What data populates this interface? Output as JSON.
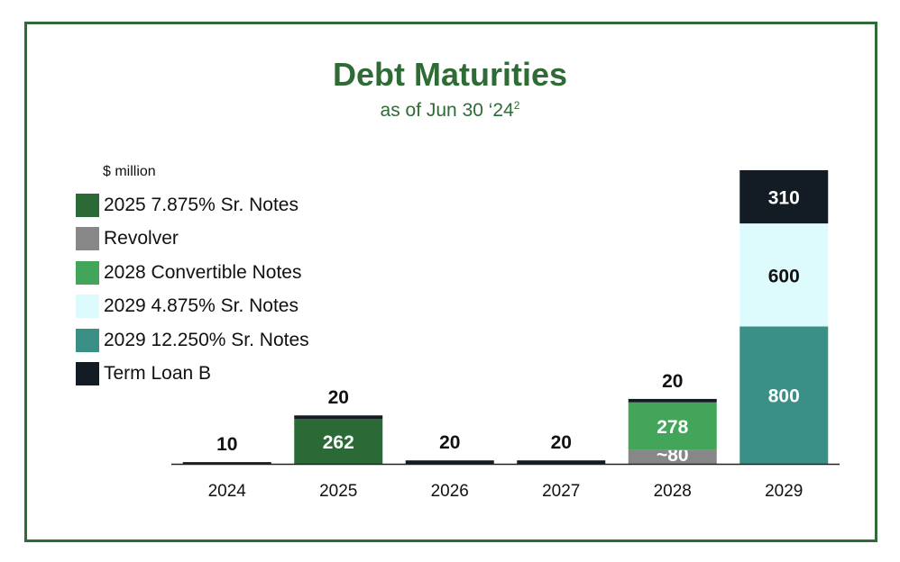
{
  "title": "Debt Maturities",
  "subtitle_text": "as of Jun 30 ‘24",
  "subtitle_sup": "2",
  "unit_label": "$ million",
  "colors": {
    "frame": "#2e6b35",
    "title": "#2e6b35",
    "notes_2025": "#2b6a36",
    "revolver": "#878787",
    "convertible_2028": "#43a55a",
    "notes_2029_4875": "#ddfafd",
    "notes_2029_12250": "#3a9086",
    "term_loan_b": "#131c24",
    "axis": "#222222"
  },
  "legend": [
    {
      "label": "2025 7.875% Sr. Notes",
      "color": "#2b6a36"
    },
    {
      "label": "Revolver",
      "color": "#878787"
    },
    {
      "label": "2028 Convertible Notes",
      "color": "#43a55a"
    },
    {
      "label": "2029 4.875% Sr. Notes",
      "color": "#ddfafd"
    },
    {
      "label": "2029 12.250% Sr. Notes",
      "color": "#3a9086"
    },
    {
      "label": "Term Loan B",
      "color": "#131c24"
    }
  ],
  "chart_data": {
    "type": "bar",
    "stacked": true,
    "title": "Debt Maturities",
    "subtitle": "as of Jun 30 ‘24²",
    "ylabel": "$ million",
    "categories": [
      "2024",
      "2025",
      "2026",
      "2027",
      "2028",
      "2029"
    ],
    "series": [
      {
        "name": "2029 12.250% Sr. Notes",
        "color": "#3a9086",
        "values": [
          0,
          0,
          0,
          0,
          0,
          800
        ],
        "labels": [
          "",
          "",
          "",
          "",
          "",
          "800"
        ],
        "label_color": "#ffffff"
      },
      {
        "name": "2025 7.875% Sr. Notes",
        "color": "#2b6a36",
        "values": [
          0,
          262,
          0,
          0,
          0,
          0
        ],
        "labels": [
          "",
          "262",
          "",
          "",
          "",
          ""
        ],
        "label_color": "#ffffff"
      },
      {
        "name": "Revolver",
        "color": "#878787",
        "values": [
          0,
          0,
          0,
          0,
          80,
          0
        ],
        "labels": [
          "",
          "",
          "",
          "",
          "~80",
          ""
        ],
        "label_color": "#ffffff"
      },
      {
        "name": "2028 Convertible Notes",
        "color": "#43a55a",
        "values": [
          0,
          0,
          0,
          0,
          278,
          0
        ],
        "labels": [
          "",
          "",
          "",
          "",
          "278",
          ""
        ],
        "label_color": "#ffffff"
      },
      {
        "name": "2029 4.875% Sr. Notes",
        "color": "#ddfafd",
        "values": [
          0,
          0,
          0,
          0,
          0,
          600
        ],
        "labels": [
          "",
          "",
          "",
          "",
          "",
          "600"
        ],
        "label_color": "#111111"
      },
      {
        "name": "Term Loan B",
        "color": "#131c24",
        "values": [
          10,
          20,
          20,
          20,
          20,
          310
        ],
        "labels": [
          "10",
          "20",
          "20",
          "20",
          "20",
          "310"
        ],
        "label_color": "#ffffff",
        "label_above_categories": [
          "2024",
          "2025",
          "2026",
          "2027",
          "2028"
        ]
      }
    ],
    "ylim": [
      0,
      1710
    ],
    "grid": false,
    "legend_position": "left"
  }
}
